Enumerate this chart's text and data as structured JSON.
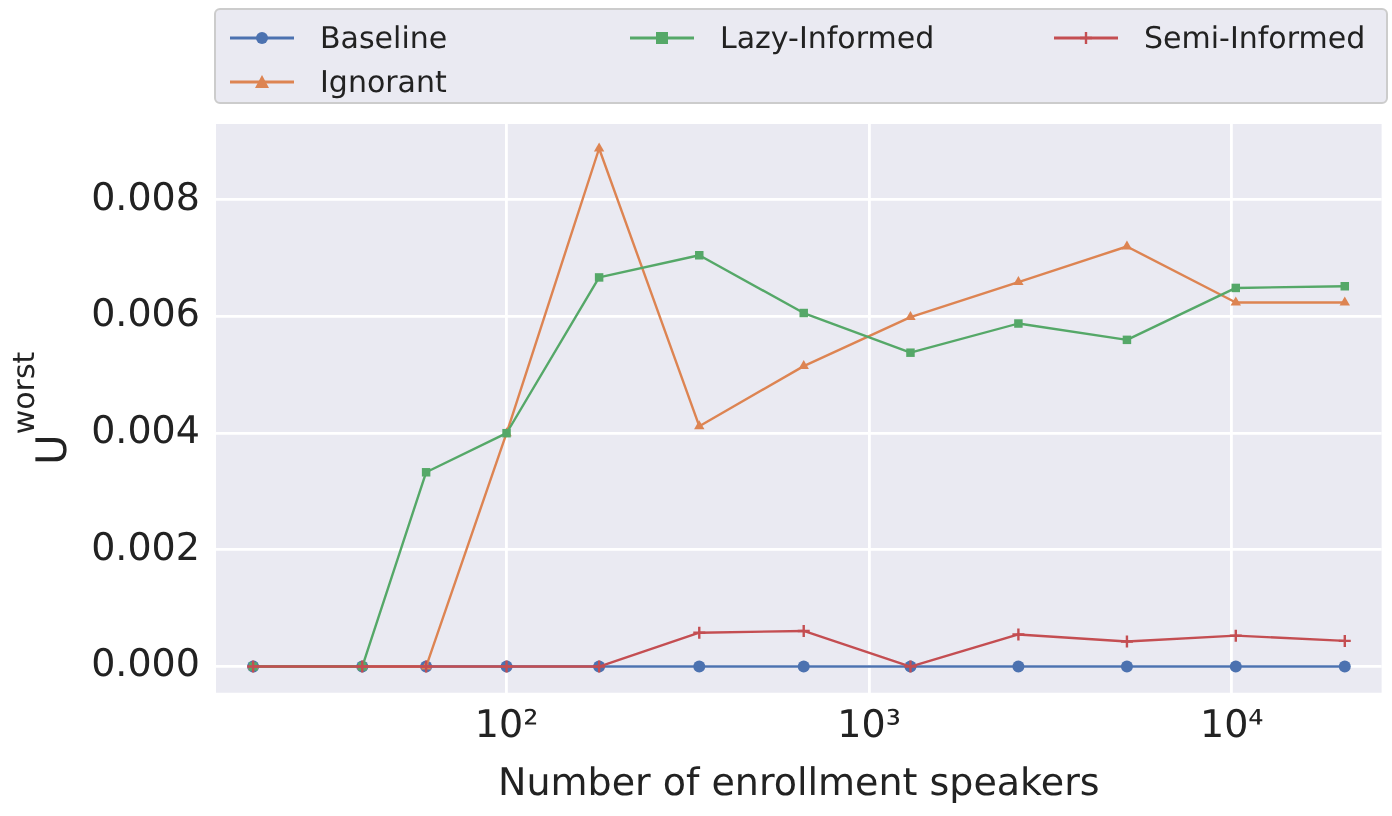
{
  "chart_data": {
    "type": "line",
    "xlabel": "Number of enrollment speakers",
    "ylabel": "U$^{worst}$",
    "x": [
      20,
      40,
      60,
      100,
      180,
      340,
      660,
      1300,
      2580,
      5140,
      10260,
      20500
    ],
    "log": "x",
    "xlim": [
      15.8,
      25900
    ],
    "xticks": [
      {
        "value": 100,
        "label": "10²"
      },
      {
        "value": 1000,
        "label": "10³"
      },
      {
        "value": 10000,
        "label": "10⁴"
      }
    ],
    "ylim": [
      -0.00045,
      0.0093
    ],
    "yticks": [
      {
        "value": 0,
        "label": "0.000"
      },
      {
        "value": 0.002,
        "label": "0.002"
      },
      {
        "value": 0.004,
        "label": "0.004"
      },
      {
        "value": 0.006,
        "label": "0.006"
      },
      {
        "value": 0.008,
        "label": "0.008"
      }
    ],
    "grid": true,
    "legend": "top",
    "line_style": "solid",
    "series": [
      {
        "name": "Baseline",
        "color": "#4c72b0",
        "marker": "circle",
        "values": [
          0,
          0,
          0,
          0,
          0,
          0,
          0,
          0,
          0,
          0,
          0,
          0
        ]
      },
      {
        "name": "Ignorant",
        "color": "#dd8452",
        "marker": "triangle",
        "values": [
          0,
          0,
          0,
          0.004,
          0.00888,
          0.00412,
          0.00515,
          0.00599,
          0.00659,
          0.0072,
          0.00624,
          0.00624
        ]
      },
      {
        "name": "Lazy-Informed",
        "color": "#55a868",
        "marker": "square",
        "values": [
          0,
          0,
          0.00333,
          0.004,
          0.00667,
          0.00705,
          0.00606,
          0.00538,
          0.00588,
          0.0056,
          0.00649,
          0.00652
        ]
      },
      {
        "name": "Semi-Informed",
        "color": "#c44e52",
        "marker": "cross",
        "values": [
          0,
          0,
          0,
          0,
          0,
          0.00058,
          0.00061,
          0,
          0.00055,
          0.00043,
          0.00053,
          0.00044
        ]
      }
    ]
  }
}
